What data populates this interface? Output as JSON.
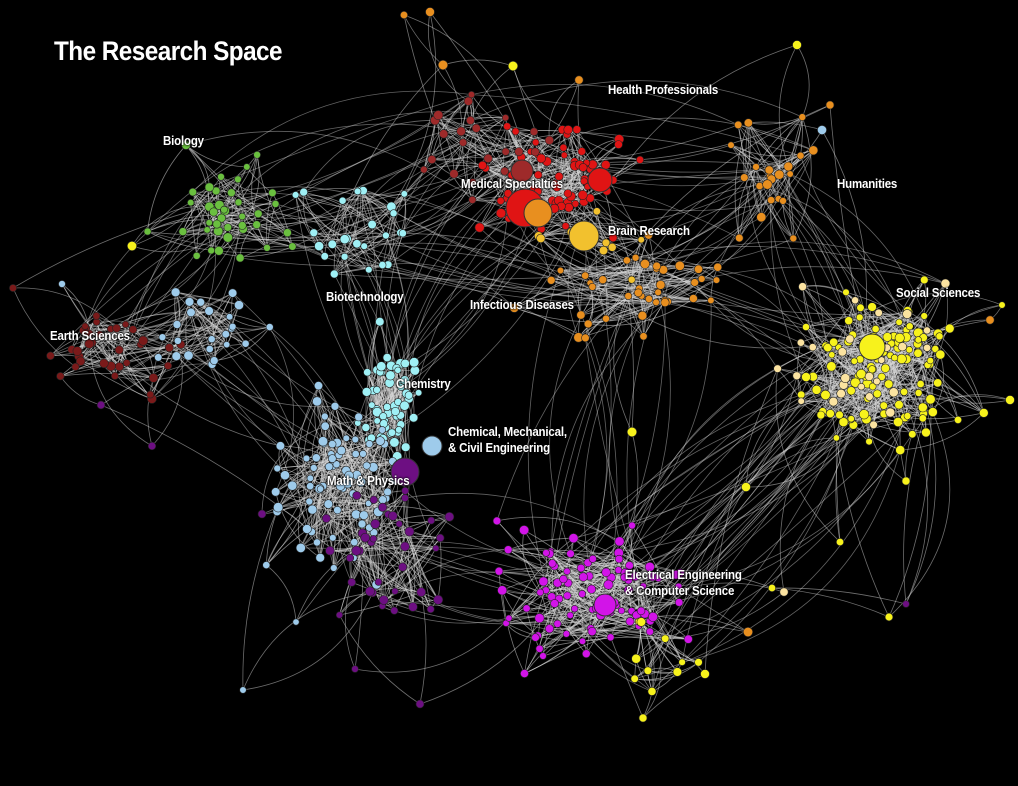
{
  "title": "The Research Space",
  "colors": {
    "background": "#000000",
    "edge": "#d9d9d9",
    "biology": "#6abf3f",
    "earth_sciences": "#7a1a1a",
    "health": "#e01414",
    "medical": "#9e2a2a",
    "brain": "#f2c12e",
    "infectious": "#e88f1f",
    "humanities": "#fbe3a0",
    "social": "#f7f21c",
    "chemistry": "#9ff0f5",
    "engineering": "#9ecbeb",
    "math_physics": "#6d0f82",
    "eecs": "#d214e8"
  },
  "labels": {
    "biology": "Biology",
    "health_professionals": "Health Professionals",
    "medical_specialties": "Medical Specialties",
    "brain_research": "Brain Research",
    "humanities": "Humanities",
    "social_sciences": "Social Sciences",
    "biotechnology": "Biotechnology",
    "infectious_diseases": "Infectious Diseases",
    "earth_sciences": "Earth Sciences",
    "chemistry": "Chemistry",
    "chem_mech_civil_1": "Chemical, Mechanical,",
    "chem_mech_civil_2": "& Civil Engineering",
    "math_physics": "Math & Physics",
    "eecs_1": "Electrical Engineering",
    "eecs_2": "& Computer Science"
  },
  "hubs": [
    {
      "name": "hub-medical-specialties",
      "color": "health"
    },
    {
      "name": "hub-medical-dark",
      "color": "medical"
    },
    {
      "name": "hub-health-red",
      "color": "health"
    },
    {
      "name": "hub-medical-orange",
      "color": "infectious"
    },
    {
      "name": "hub-brain-research",
      "color": "brain"
    },
    {
      "name": "hub-social-sciences",
      "color": "social"
    },
    {
      "name": "hub-engineering",
      "color": "engineering"
    },
    {
      "name": "hub-math-physics",
      "color": "math_physics"
    },
    {
      "name": "hub-eecs",
      "color": "eecs"
    }
  ]
}
